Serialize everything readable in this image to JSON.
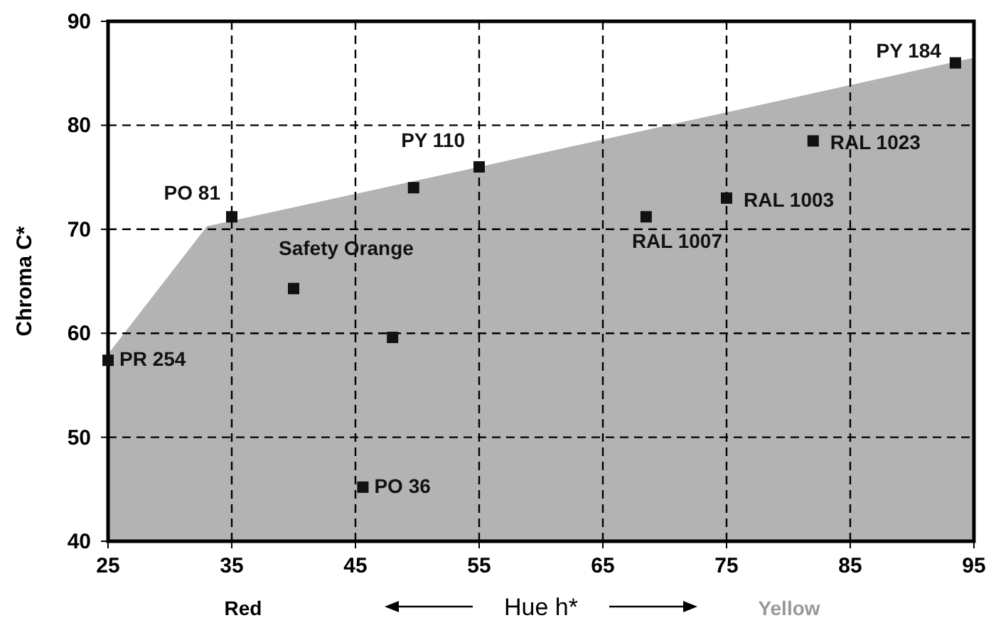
{
  "chart_data": {
    "type": "scatter",
    "xlabel": "Hue h*",
    "ylabel": "Chroma C*",
    "xlim": [
      25,
      95
    ],
    "ylim": [
      40,
      90
    ],
    "xticks": [
      25,
      35,
      45,
      55,
      65,
      75,
      85,
      95
    ],
    "yticks": [
      40,
      50,
      60,
      70,
      80,
      90
    ],
    "grid": true,
    "line_style": "dashed",
    "annotations": [
      "Red",
      "Yellow",
      "Safety Orange"
    ],
    "series": [
      {
        "type": "area",
        "color": "#a0a0a0",
        "x": [
          25,
          25,
          33,
          55,
          95
        ],
        "values": [
          40,
          58,
          70.3,
          76,
          86.5
        ]
      },
      {
        "marker": "square",
        "color": "#111111",
        "x": [
          25,
          35,
          40,
          45.6,
          48,
          49.7,
          55,
          68.5,
          75,
          82,
          93.5
        ],
        "values": [
          57.4,
          71.2,
          64.3,
          45.2,
          59.6,
          74,
          76,
          71.2,
          73,
          78.5,
          86
        ],
        "value_labels": [
          "PR 254",
          "PO 81",
          null,
          "PO 36",
          null,
          null,
          "PY 110",
          "RAL 1007",
          "RAL 1003",
          "RAL 1023",
          "PY 184"
        ]
      }
    ]
  }
}
